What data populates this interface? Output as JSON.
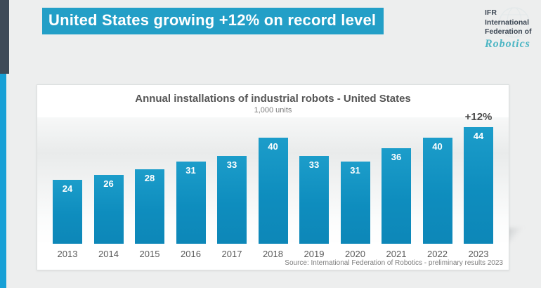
{
  "header": {
    "title": "United States growing +12% on record level"
  },
  "logo": {
    "line1": "IFR",
    "line2": "International",
    "line3": "Federation of",
    "script": "Robotics"
  },
  "chart": {
    "title": "Annual installations of industrial robots - United States",
    "subtitle": "1,000 units",
    "annotation": "+12%",
    "source": "Source: International Federation of Robotics - preliminary results 2023"
  },
  "chart_data": {
    "type": "bar",
    "title": "Annual installations of industrial robots - United States",
    "subtitle": "1,000 units",
    "unit": "1,000 units",
    "categories": [
      "2013",
      "2014",
      "2015",
      "2016",
      "2017",
      "2018",
      "2019",
      "2020",
      "2021",
      "2022",
      "2023"
    ],
    "values": [
      24,
      26,
      28,
      31,
      33,
      40,
      33,
      31,
      36,
      40,
      44
    ],
    "ylim": [
      0,
      48
    ],
    "grid": false,
    "legend": false,
    "bar_color": "#0e8dbe",
    "annotations": [
      {
        "category": "2023",
        "text": "+12%"
      }
    ],
    "source": "Source: International Federation of Robotics - preliminary results 2023"
  },
  "colors": {
    "banner": "#239fc7",
    "bar": "#0e8dbe",
    "stripe_dark": "#3e4a58",
    "stripe_blue": "#17a0d6",
    "page_background": "#edeeee"
  }
}
